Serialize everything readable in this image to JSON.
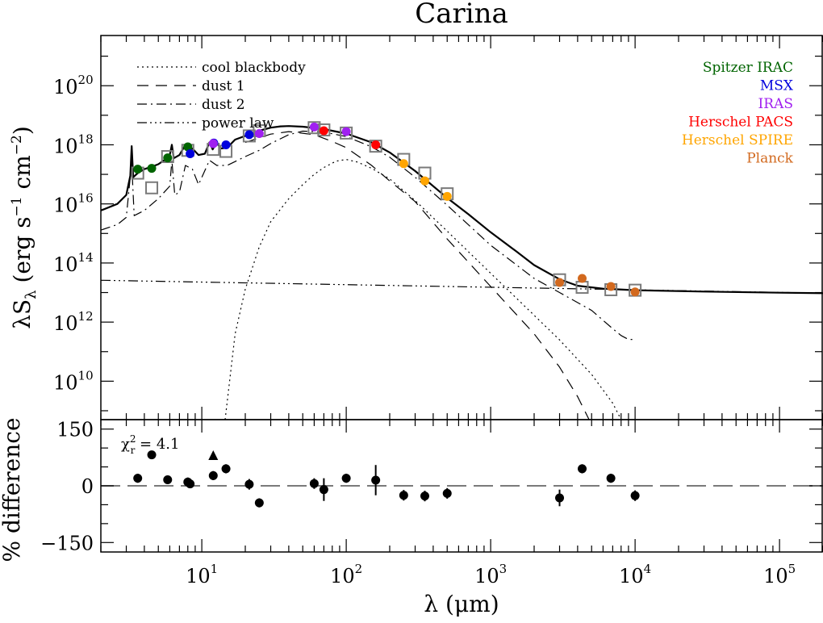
{
  "chart_data": {
    "type": "scatter",
    "title": "Carina",
    "top_panel": {
      "ylabel": "λS_λ (erg s⁻¹ cm⁻²)",
      "ylabel_parts": {
        "main": "λS",
        "sub": "λ",
        "units_open": " (erg s",
        "exp1": "−1",
        "units_mid": " cm",
        "exp2": "−2",
        "units_close": ")"
      },
      "log_x": true,
      "log_y": true,
      "xlim": [
        2,
        200000
      ],
      "ylim": [
        500000000.0,
        5e+21
      ],
      "y_ticks": [
        {
          "value": 10000000000.0,
          "base": "10",
          "exp": "10"
        },
        {
          "value": 1000000000000.0,
          "base": "10",
          "exp": "12"
        },
        {
          "value": 100000000000000.0,
          "base": "10",
          "exp": "14"
        },
        {
          "value": 1e+16,
          "base": "10",
          "exp": "16"
        },
        {
          "value": 1e+18,
          "base": "10",
          "exp": "18"
        },
        {
          "value": 1e+20,
          "base": "10",
          "exp": "20"
        }
      ],
      "model_legend": [
        {
          "label": "cool blackbody",
          "dash": "2,4"
        },
        {
          "label": "dust 1",
          "dash": "14,9"
        },
        {
          "label": "dust 2",
          "dash": "12,5,2,5"
        },
        {
          "label": "power law",
          "dash": "12,4,2,4,2,4,2,4"
        }
      ],
      "instrument_legend": [
        {
          "label": "Spitzer IRAC",
          "color": "#006400"
        },
        {
          "label": "MSX",
          "color": "#0000dd"
        },
        {
          "label": "IRAS",
          "color": "#a020f0"
        },
        {
          "label": "Herschel PACS",
          "color": "#ff0000"
        },
        {
          "label": "Herschel SPIRE",
          "color": "#ffa500"
        },
        {
          "label": "Planck",
          "color": "#d2691e"
        }
      ],
      "observed": [
        {
          "instrument": "Spitzer IRAC",
          "x": 3.6,
          "y": 1.5e+17
        },
        {
          "instrument": "Spitzer IRAC",
          "x": 4.5,
          "y": 1.6e+17
        },
        {
          "instrument": "Spitzer IRAC",
          "x": 5.8,
          "y": 3.6e+17
        },
        {
          "instrument": "Spitzer IRAC",
          "x": 8.0,
          "y": 8.5e+17
        },
        {
          "instrument": "MSX",
          "x": 8.3,
          "y": 5e+17
        },
        {
          "instrument": "MSX",
          "x": 12.1,
          "y": 1.15e+18
        },
        {
          "instrument": "MSX",
          "x": 14.7,
          "y": 1e+18
        },
        {
          "instrument": "MSX",
          "x": 21.3,
          "y": 2.2e+18
        },
        {
          "instrument": "IRAS",
          "x": 12,
          "y": 1.1e+18
        },
        {
          "instrument": "IRAS",
          "x": 25,
          "y": 2.4e+18
        },
        {
          "instrument": "IRAS",
          "x": 60,
          "y": 4e+18
        },
        {
          "instrument": "IRAS",
          "x": 100,
          "y": 2.8e+18
        },
        {
          "instrument": "Herschel PACS",
          "x": 70,
          "y": 3e+18
        },
        {
          "instrument": "Herschel PACS",
          "x": 160,
          "y": 1e+18
        },
        {
          "instrument": "Herschel SPIRE",
          "x": 250,
          "y": 2.3e+17
        },
        {
          "instrument": "Herschel SPIRE",
          "x": 350,
          "y": 6e+16
        },
        {
          "instrument": "Herschel SPIRE",
          "x": 500,
          "y": 1.8e+16
        },
        {
          "instrument": "Planck",
          "x": 3000,
          "y": 22000000000000.0
        },
        {
          "instrument": "Planck",
          "x": 4300,
          "y": 30000000000000.0
        },
        {
          "instrument": "Planck",
          "x": 6800,
          "y": 16000000000000.0
        },
        {
          "instrument": "Planck",
          "x": 10000,
          "y": 10500000000000.0
        }
      ],
      "model_points": [
        {
          "x": 3.6,
          "y": 1.1e+17
        },
        {
          "x": 4.5,
          "y": 3.5e+16
        },
        {
          "x": 5.8,
          "y": 4e+17
        },
        {
          "x": 8.0,
          "y": 6.5e+17
        },
        {
          "x": 12,
          "y": 7e+17
        },
        {
          "x": 14.7,
          "y": 6e+17
        },
        {
          "x": 21.3,
          "y": 2e+18
        },
        {
          "x": 25,
          "y": 3e+18
        },
        {
          "x": 60,
          "y": 3.8e+18
        },
        {
          "x": 70,
          "y": 3.2e+18
        },
        {
          "x": 100,
          "y": 2.5e+18
        },
        {
          "x": 160,
          "y": 9e+17
        },
        {
          "x": 250,
          "y": 3.2e+17
        },
        {
          "x": 350,
          "y": 1.1e+17
        },
        {
          "x": 500,
          "y": 2.2e+16
        },
        {
          "x": 3000,
          "y": 27000000000000.0
        },
        {
          "x": 4300,
          "y": 15000000000000.0
        },
        {
          "x": 6800,
          "y": 12500000000000.0
        },
        {
          "x": 10000,
          "y": 12000000000000.0
        }
      ],
      "series": [
        {
          "key": "total",
          "dash": "",
          "width": 2.2,
          "points": [
            [
              2.0,
              6000000000000000.0
            ],
            [
              2.6,
              1e+16
            ],
            [
              3.0,
              2e+16
            ],
            [
              3.2,
              9e+16
            ],
            [
              3.27,
              9e+17
            ],
            [
              3.35,
              8e+16
            ],
            [
              3.6,
              1.1e+17
            ],
            [
              4.0,
              1.5e+17
            ],
            [
              4.5,
              1.8e+17
            ],
            [
              5.0,
              2.2e+17
            ],
            [
              5.5,
              3e+17
            ],
            [
              6.0,
              4.5e+17
            ],
            [
              6.2,
              1e+18
            ],
            [
              6.4,
              3.5e+17
            ],
            [
              7.0,
              4.5e+17
            ],
            [
              7.7,
              1e+18
            ],
            [
              8.2,
              7e+17
            ],
            [
              8.6,
              7.5e+17
            ],
            [
              9.5,
              4.5e+17
            ],
            [
              10.5,
              5e+17
            ],
            [
              11.3,
              1.2e+18
            ],
            [
              11.9,
              7e+17
            ],
            [
              12.7,
              1.2e+18
            ],
            [
              13.5,
              7.5e+17
            ],
            [
              15,
              8e+17
            ],
            [
              17,
              1.5e+18
            ],
            [
              20,
              2e+18
            ],
            [
              25,
              3e+18
            ],
            [
              30,
              3.8e+18
            ],
            [
              35,
              4.2e+18
            ],
            [
              40,
              4.3e+18
            ],
            [
              50,
              4.1e+18
            ],
            [
              70,
              3.4e+18
            ],
            [
              100,
              2.4e+18
            ],
            [
              150,
              1.2e+18
            ],
            [
              200,
              5.5e+17
            ],
            [
              300,
              1.3e+17
            ],
            [
              500,
              1.6e+16
            ],
            [
              700,
              4500000000000000.0
            ],
            [
              1000,
              1100000000000000.0
            ],
            [
              1500,
              250000000000000.0
            ],
            [
              2000,
              85000000000000.0
            ],
            [
              3000,
              28000000000000.0
            ],
            [
              4000,
              17000000000000.0
            ],
            [
              6000,
              13500000000000.0
            ],
            [
              10000,
              12000000000000.0
            ],
            [
              30000,
              10800000000000.0
            ],
            [
              100000,
              9900000000000.0
            ],
            [
              200000,
              9500000000000.0
            ]
          ]
        },
        {
          "key": "cool blackbody",
          "dash": "2,4",
          "width": 1.2,
          "points": [
            [
              14.5,
              500000000.0
            ],
            [
              17,
              400000000000.0
            ],
            [
              20,
              13000000000000.0
            ],
            [
              25,
              350000000000000.0
            ],
            [
              30,
              2500000000000000.0
            ],
            [
              40,
              1.5e+16
            ],
            [
              50,
              4.5e+16
            ],
            [
              60,
              1e+17
            ],
            [
              70,
              1.7e+17
            ],
            [
              85,
              2.8e+17
            ],
            [
              100,
              3.2e+17
            ],
            [
              120,
              2.6e+17
            ],
            [
              150,
              1.6e+17
            ],
            [
              200,
              7e+16
            ],
            [
              300,
              1.3e+16
            ],
            [
              500,
              1200000000000000.0
            ],
            [
              1000,
              45000000000000.0
            ],
            [
              2000,
              1700000000000.0
            ],
            [
              3000,
              250000000000.0
            ],
            [
              5000,
              17000000000.0
            ],
            [
              7000,
              1800000000.0
            ],
            [
              8000,
              500000000.0
            ]
          ]
        },
        {
          "key": "dust 1",
          "dash": "14,9",
          "width": 1.2,
          "points": [
            [
              20,
              1.2e+18
            ],
            [
              30,
              2.3e+18
            ],
            [
              40,
              2.8e+18
            ],
            [
              60,
              2.2e+18
            ],
            [
              80,
              1.3e+18
            ],
            [
              100,
              8e+17
            ],
            [
              150,
              2e+17
            ],
            [
              200,
              6e+16
            ],
            [
              300,
              1.2e+16
            ],
            [
              500,
              650000000000000.0
            ],
            [
              1000,
              16000000000000.0
            ],
            [
              2000,
              400000000000.0
            ],
            [
              3000,
              30000000000.0
            ],
            [
              4000,
              3000000000.0
            ],
            [
              4800,
              500000000.0
            ]
          ]
        },
        {
          "key": "dust 2",
          "dash": "12,5,2,5",
          "width": 1.2,
          "points": [
            [
              2.0,
              1300000000000000.0
            ],
            [
              2.6,
              2000000000000000.0
            ],
            [
              3.0,
              3500000000000000.0
            ],
            [
              3.27,
              2.5e+17
            ],
            [
              3.4,
              4000000000000000.0
            ],
            [
              4.0,
              6000000000000000.0
            ],
            [
              5.0,
              1.5e+16
            ],
            [
              6.0,
              4e+16
            ],
            [
              6.2,
              3e+17
            ],
            [
              6.5,
              2e+16
            ],
            [
              7.0,
              2.5e+16
            ],
            [
              7.7,
              2e+17
            ],
            [
              8.6,
              1.5e+17
            ],
            [
              9.5,
              4.5e+16
            ],
            [
              11.3,
              3e+17
            ],
            [
              12.7,
              2e+17
            ],
            [
              15,
              2e+17
            ],
            [
              20,
              4e+17
            ],
            [
              25,
              6.5e+17
            ],
            [
              30,
              1.1e+18
            ],
            [
              40,
              2.2e+18
            ],
            [
              50,
              2.9e+18
            ],
            [
              70,
              2.7e+18
            ],
            [
              100,
              1.9e+18
            ],
            [
              150,
              8.5e+17
            ],
            [
              200,
              3.8e+17
            ],
            [
              300,
              8e+16
            ],
            [
              500,
              9000000000000000.0
            ],
            [
              1000,
              400000000000000.0
            ],
            [
              2000,
              30000000000000.0
            ],
            [
              3000,
              10000000000000.0
            ],
            [
              5000,
              2500000000000.0
            ],
            [
              7000,
              600000000000.0
            ],
            [
              8000,
              350000000000.0
            ],
            [
              9000,
              260000000000.0
            ],
            [
              10000,
              260000000000.0
            ]
          ]
        },
        {
          "key": "power law",
          "dash": "12,4,2,4,2,4,2,4",
          "width": 1.2,
          "points": [
            [
              2.0,
              26000000000000.0
            ],
            [
              200000,
              9500000000000.0
            ]
          ]
        }
      ]
    },
    "bottom_panel": {
      "ylabel": "% difference",
      "ylim": [
        -175,
        175
      ],
      "y_ticks": [
        {
          "value": 150,
          "label": "150"
        },
        {
          "value": 0,
          "label": "0"
        },
        {
          "value": -150,
          "label": "−150"
        }
      ],
      "chi_label": {
        "chi": "χ",
        "sup": "2",
        "sub": "r",
        "text": " = 4.1"
      },
      "residuals": [
        {
          "x": 3.6,
          "y": 20,
          "err": 12
        },
        {
          "x": 4.5,
          "y": 82,
          "err": 10
        },
        {
          "x": 5.8,
          "y": 16,
          "err": 10
        },
        {
          "x": 8.0,
          "y": 10,
          "err": 12
        },
        {
          "x": 8.3,
          "y": 5,
          "err": 10
        },
        {
          "x": 12,
          "y": 27,
          "err": 12,
          "marker": "triangle",
          "dy": 52
        },
        {
          "x": 14.7,
          "y": 45,
          "err": 12
        },
        {
          "x": 21.3,
          "y": 4,
          "err": 14
        },
        {
          "x": 25,
          "y": -45,
          "err": 12
        },
        {
          "x": 60,
          "y": 6,
          "err": 14
        },
        {
          "x": 70,
          "y": -10,
          "err": 30
        },
        {
          "x": 100,
          "y": 20,
          "err": 12
        },
        {
          "x": 160,
          "y": 15,
          "err": 40
        },
        {
          "x": 250,
          "y": -25,
          "err": 14
        },
        {
          "x": 350,
          "y": -27,
          "err": 14
        },
        {
          "x": 500,
          "y": -20,
          "err": 14
        },
        {
          "x": 3000,
          "y": -32,
          "err": 22
        },
        {
          "x": 4300,
          "y": 45,
          "err": 12
        },
        {
          "x": 6800,
          "y": 20,
          "err": 12
        },
        {
          "x": 10000,
          "y": -26,
          "err": 14
        }
      ]
    },
    "x_axis": {
      "xlabel": "λ (μm)",
      "x_ticks": [
        {
          "value": 10,
          "base": "10",
          "exp": "1"
        },
        {
          "value": 100,
          "base": "10",
          "exp": "2"
        },
        {
          "value": 1000,
          "base": "10",
          "exp": "3"
        },
        {
          "value": 10000,
          "base": "10",
          "exp": "4"
        },
        {
          "value": 100000,
          "base": "10",
          "exp": "5"
        }
      ]
    }
  }
}
